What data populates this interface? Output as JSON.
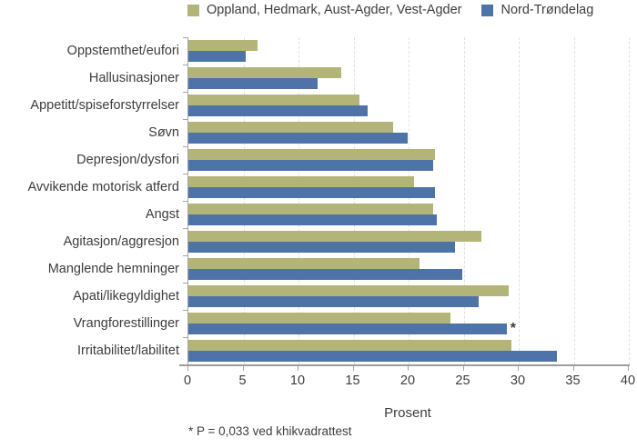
{
  "footnote": "* P = 0,033 ved khikvadrattest",
  "chart_data": {
    "type": "bar",
    "orientation": "horizontal",
    "title": "",
    "xlabel": "Prosent",
    "ylabel": "",
    "xlim": [
      0,
      40
    ],
    "xticks": [
      0,
      5,
      10,
      15,
      20,
      25,
      30,
      35,
      40
    ],
    "grid": "vertical-dashed",
    "legend_position": "top",
    "categories": [
      "Oppstemthet/eufori",
      "Hallusinasjoner",
      "Appetitt/spiseforstyrrelser",
      "Søvn",
      "Depresjon/dysfori",
      "Avvikende motorisk atferd",
      "Angst",
      "Agitasjon/aggresjon",
      "Manglende hemninger",
      "Apati/likegyldighet",
      "Vrangforestillinger",
      "Irritabilitet/labilitet"
    ],
    "series": [
      {
        "name": "Oppland, Hedmark, Aust-Agder, Vest-Agder",
        "color": "#b3b477",
        "values": [
          6.3,
          13.9,
          15.5,
          18.6,
          22.4,
          20.5,
          22.2,
          26.6,
          21.0,
          29.1,
          23.8,
          29.3
        ]
      },
      {
        "name": "Nord-Trøndelag",
        "color": "#4e73a8",
        "values": [
          5.2,
          11.7,
          16.3,
          19.9,
          22.2,
          22.4,
          22.6,
          24.2,
          24.9,
          26.4,
          28.9,
          33.5
        ]
      }
    ],
    "annotations": [
      {
        "category": "Vrangforestillinger",
        "series": "Nord-Trøndelag",
        "text": "*"
      }
    ]
  }
}
